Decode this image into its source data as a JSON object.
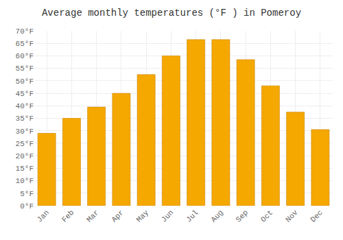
{
  "chart_data": {
    "type": "bar",
    "title": "Average monthly temperatures (°F ) in Pomeroy",
    "categories": [
      "Jan",
      "Feb",
      "Mar",
      "Apr",
      "May",
      "Jun",
      "Jul",
      "Aug",
      "Sep",
      "Oct",
      "Nov",
      "Dec"
    ],
    "values": [
      29,
      35,
      39.5,
      45,
      52.5,
      60,
      66.5,
      66.5,
      58.5,
      48,
      37.5,
      30.5
    ],
    "color": "#F5A800",
    "ylim": [
      0,
      70
    ],
    "yticks": [
      {
        "value": 0,
        "label": "0°F"
      },
      {
        "value": 5,
        "label": "5°F"
      },
      {
        "value": 10,
        "label": "10°F"
      },
      {
        "value": 15,
        "label": "15°F"
      },
      {
        "value": 20,
        "label": "20°F"
      },
      {
        "value": 25,
        "label": "25°F"
      },
      {
        "value": 30,
        "label": "30°F"
      },
      {
        "value": 35,
        "label": "35°F"
      },
      {
        "value": 40,
        "label": "40°F"
      },
      {
        "value": 45,
        "label": "45°F"
      },
      {
        "value": 50,
        "label": "50°F"
      },
      {
        "value": 55,
        "label": "55°F"
      },
      {
        "value": 60,
        "label": "60°F"
      },
      {
        "value": 65,
        "label": "65°F"
      },
      {
        "value": 70,
        "label": "70°F"
      }
    ],
    "grid": true
  }
}
